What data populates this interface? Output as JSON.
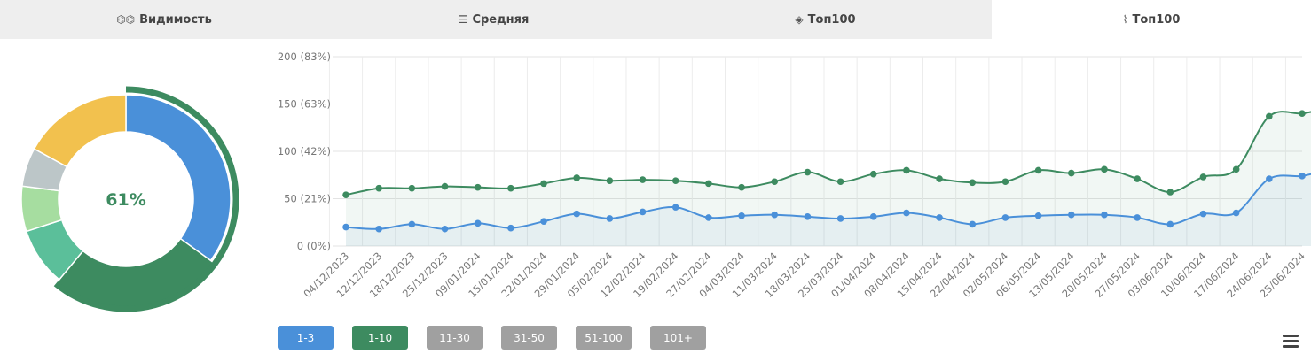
{
  "tabs": [
    {
      "label": "Видимость",
      "icon": "glasses-icon",
      "icon_glyph": "⌬⌬",
      "active": false
    },
    {
      "label": "Средняя",
      "icon": "stacked-lines-icon",
      "icon_glyph": "☰",
      "active": false
    },
    {
      "label": "Топ100",
      "icon": "layers-icon",
      "icon_glyph": "◈",
      "active": false
    },
    {
      "label": "Топ100",
      "icon": "line-chart-icon",
      "icon_glyph": "⌇",
      "active": true
    }
  ],
  "donut": {
    "center_label": "61%",
    "center_color": "#3d8b60",
    "segments": [
      {
        "value": 35,
        "color": "#4a90d9"
      },
      {
        "value": 26,
        "color": "#3d8b60"
      },
      {
        "value": 9,
        "color": "#5bbf9a"
      },
      {
        "value": 7,
        "color": "#a6dda0"
      },
      {
        "value": 6,
        "color": "#bcc6c8"
      },
      {
        "value": 17,
        "color": "#f2c14e"
      }
    ]
  },
  "chart_data": {
    "type": "line",
    "y_ticks": [
      "200 (83%)",
      "150 (63%)",
      "100 (42%)",
      "50 (21%)",
      "0 (0%)"
    ],
    "ylim": [
      0,
      200
    ],
    "grid": true,
    "x": [
      "04/12/2023",
      "12/12/2023",
      "18/12/2023",
      "25/12/2023",
      "09/01/2024",
      "15/01/2024",
      "22/01/2024",
      "29/01/2024",
      "05/02/2024",
      "12/02/2024",
      "19/02/2024",
      "27/02/2024",
      "04/03/2024",
      "11/03/2024",
      "18/03/2024",
      "25/03/2024",
      "01/04/2024",
      "08/04/2024",
      "15/04/2024",
      "22/04/2024",
      "02/05/2024",
      "06/05/2024",
      "13/05/2024",
      "20/05/2024",
      "27/05/2024",
      "03/06/2024",
      "10/06/2024",
      "17/06/2024",
      "24/06/2024",
      "25/06/2024"
    ],
    "series": [
      {
        "name": "1-10",
        "color": "#3d8b60",
        "points": [
          [
            0,
            54
          ],
          [
            1,
            61
          ],
          [
            2,
            61
          ],
          [
            3,
            63
          ],
          [
            4,
            62
          ],
          [
            5,
            61
          ],
          [
            6,
            66
          ],
          [
            7,
            72
          ],
          [
            8,
            69
          ],
          [
            9,
            70
          ],
          [
            10,
            69
          ],
          [
            11,
            66
          ],
          [
            12,
            62
          ],
          [
            13,
            68
          ],
          [
            14,
            78
          ],
          [
            15,
            68
          ],
          [
            16,
            76
          ],
          [
            17,
            80
          ],
          [
            18,
            71
          ],
          [
            19,
            67
          ],
          [
            20,
            68
          ],
          [
            21,
            80
          ],
          [
            22,
            77
          ],
          [
            23,
            81
          ],
          [
            24,
            71
          ],
          [
            25,
            57
          ],
          [
            26,
            73
          ],
          [
            27,
            81
          ],
          [
            28,
            137
          ],
          [
            29,
            140
          ],
          [
            29.7,
            145
          ]
        ]
      },
      {
        "name": "1-3",
        "color": "#4a90d9",
        "points": [
          [
            0,
            20
          ],
          [
            1,
            18
          ],
          [
            2,
            23
          ],
          [
            3,
            18
          ],
          [
            4,
            24
          ],
          [
            5,
            19
          ],
          [
            6,
            26
          ],
          [
            7,
            34
          ],
          [
            8,
            29
          ],
          [
            9,
            36
          ],
          [
            10,
            41
          ],
          [
            11,
            30
          ],
          [
            12,
            32
          ],
          [
            13,
            33
          ],
          [
            14,
            31
          ],
          [
            15,
            29
          ],
          [
            16,
            31
          ],
          [
            17,
            35
          ],
          [
            18,
            30
          ],
          [
            19,
            23
          ],
          [
            20,
            30
          ],
          [
            21,
            32
          ],
          [
            22,
            33
          ],
          [
            23,
            33
          ],
          [
            24,
            30
          ],
          [
            25,
            23
          ],
          [
            26,
            34
          ],
          [
            27,
            35
          ],
          [
            28,
            71
          ],
          [
            29,
            74
          ],
          [
            29.7,
            80
          ]
        ]
      }
    ]
  },
  "legend": [
    {
      "label": "1-3",
      "color": "#4a90d9"
    },
    {
      "label": "1-10",
      "color": "#3d8b60"
    },
    {
      "label": "11-30",
      "color": "#a0a0a0"
    },
    {
      "label": "31-50",
      "color": "#a0a0a0"
    },
    {
      "label": "51-100",
      "color": "#a0a0a0"
    },
    {
      "label": "101+",
      "color": "#a0a0a0"
    }
  ],
  "menu": {
    "icon": "hamburger-menu-icon"
  }
}
